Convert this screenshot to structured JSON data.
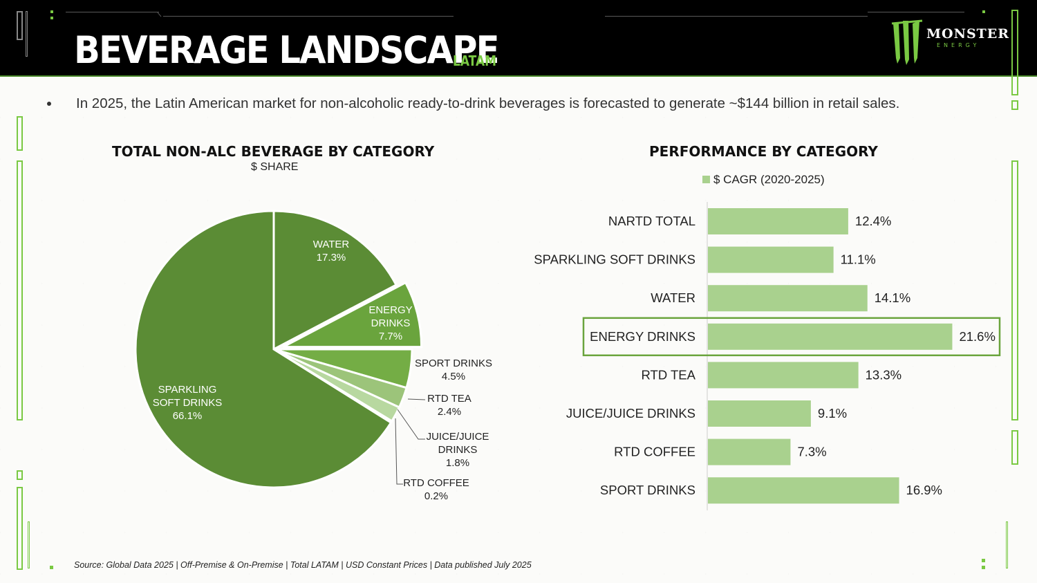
{
  "header": {
    "title": "BEVERAGE LANDSCAPE",
    "region": "LATAM",
    "logo_text": "MONSTER",
    "logo_sub": "ENERGY"
  },
  "bullet": "In 2025, the Latin American market for non-alcoholic ready-to-drink beverages is forecasted to generate ~$144 billion in retail sales.",
  "source": "Source: Global Data 2025 | Off-Premise & On-Premise | Total LATAM | USD Constant Prices | Data published July 2025",
  "colors": {
    "dark_green": "#5b8c35",
    "energy_green": "#6aa43d",
    "sport_green": "#74ad45",
    "rtd_tea": "#9cc47a",
    "juice": "#b8d8a0",
    "coffee": "#cfe5bf",
    "bar_green": "#a9d18e",
    "highlight": "#6aa43d"
  },
  "chart_data": [
    {
      "type": "pie",
      "title": "TOTAL NON-ALC BEVERAGE BY CATEGORY",
      "subtitle": "$ SHARE",
      "slices": [
        {
          "name": "WATER",
          "value": 17.3,
          "label_lines": [
            "WATER",
            "17.3%"
          ]
        },
        {
          "name": "ENERGY DRINKS",
          "value": 7.7,
          "label_lines": [
            "ENERGY",
            "DRINKS",
            "7.7%"
          ],
          "exploded": true
        },
        {
          "name": "SPORT DRINKS",
          "value": 4.5,
          "label_lines": [
            "SPORT DRINKS",
            "4.5%"
          ]
        },
        {
          "name": "RTD TEA",
          "value": 2.4,
          "label_lines": [
            "RTD TEA",
            "2.4%"
          ]
        },
        {
          "name": "JUICE/JUICE DRINKS",
          "value": 1.8,
          "label_lines": [
            "JUICE/JUICE",
            "DRINKS",
            "1.8%"
          ]
        },
        {
          "name": "RTD COFFEE",
          "value": 0.2,
          "label_lines": [
            "RTD COFFEE",
            "0.2%"
          ]
        },
        {
          "name": "SPARKLING SOFT DRINKS",
          "value": 66.1,
          "label_lines": [
            "SPARKLING",
            "SOFT DRINKS",
            "66.1%"
          ]
        }
      ]
    },
    {
      "type": "bar",
      "orientation": "horizontal",
      "title": "PERFORMANCE BY CATEGORY",
      "legend": "$ CAGR (2020-2025)",
      "categories": [
        "NARTD TOTAL",
        "SPARKLING SOFT DRINKS",
        "WATER",
        "ENERGY DRINKS",
        "RTD TEA",
        "JUICE/JUICE DRINKS",
        "RTD COFFEE",
        "SPORT DRINKS"
      ],
      "values": [
        12.4,
        11.1,
        14.1,
        21.6,
        13.3,
        9.1,
        7.3,
        16.9
      ],
      "value_labels": [
        "12.4%",
        "11.1%",
        "14.1%",
        "21.6%",
        "13.3%",
        "9.1%",
        "7.3%",
        "16.9%"
      ],
      "highlight": "ENERGY DRINKS",
      "xlim": [
        0,
        22
      ]
    }
  ]
}
